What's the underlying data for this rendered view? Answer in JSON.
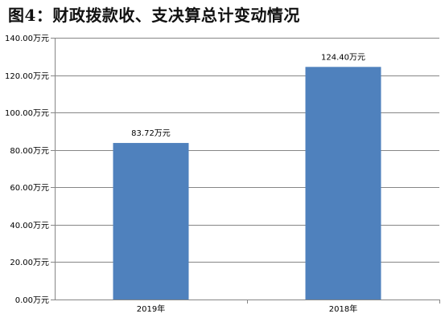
{
  "chart_data": {
    "type": "bar",
    "title": "图4：财政拨款收、支决算总计变动情况",
    "categories": [
      "2019年",
      "2018年"
    ],
    "values": [
      83.72,
      124.4
    ],
    "data_labels": [
      "83.72万元",
      "124.40万元"
    ],
    "ylim": [
      0,
      140
    ],
    "ytick_values": [
      0,
      20,
      40,
      60,
      80,
      100,
      120,
      140
    ],
    "ytick_labels": [
      "0.00万元",
      "20.00万元",
      "40.00万元",
      "60.00万元",
      "80.00万元",
      "100.00万元",
      "120.00万元",
      "140.00万元"
    ],
    "xlabel": "",
    "ylabel": "",
    "grid": true,
    "legend": "none",
    "bar_color": "#4f81bd",
    "grid_color": "#868686"
  }
}
